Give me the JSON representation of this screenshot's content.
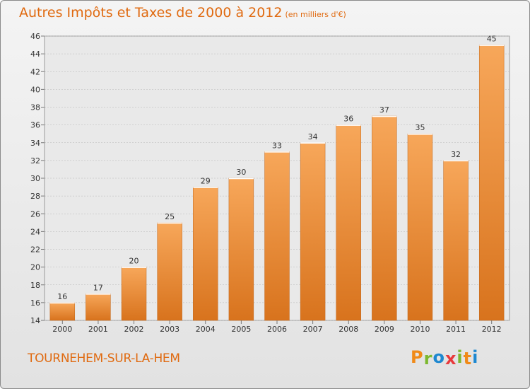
{
  "title": "Autres Impôts et Taxes de 2000 à 2012",
  "subtitle": "(en milliers d'€)",
  "location": "TOURNEHEM-SUR-LA-HEM",
  "logo": {
    "text": "Proxiti",
    "letters": [
      {
        "char": "P",
        "color": "#f08a18"
      },
      {
        "char": "r",
        "color": "#7cb82f"
      },
      {
        "char": "o",
        "color": "#1e88d0"
      },
      {
        "char": "x",
        "color": "#e8393b"
      },
      {
        "char": "i",
        "color": "#7cb82f"
      },
      {
        "char": "t",
        "color": "#f08a18"
      },
      {
        "char": "i",
        "color": "#1e88d0"
      }
    ]
  },
  "colors": {
    "bar_top": "#f7a75a",
    "bar_bottom": "#d8731d",
    "accent": "#e06a10"
  },
  "chart_data": {
    "type": "bar",
    "categories": [
      "2000",
      "2001",
      "2002",
      "2003",
      "2004",
      "2005",
      "2006",
      "2007",
      "2008",
      "2009",
      "2010",
      "2011",
      "2012"
    ],
    "values": [
      16,
      17,
      20,
      25,
      29,
      30,
      33,
      34,
      36,
      37,
      35,
      32,
      45
    ],
    "ylim": [
      14,
      46
    ],
    "yticks": [
      14,
      16,
      18,
      20,
      22,
      24,
      26,
      28,
      30,
      32,
      34,
      36,
      38,
      40,
      42,
      44,
      46
    ],
    "grid": true,
    "data_labels": true
  }
}
